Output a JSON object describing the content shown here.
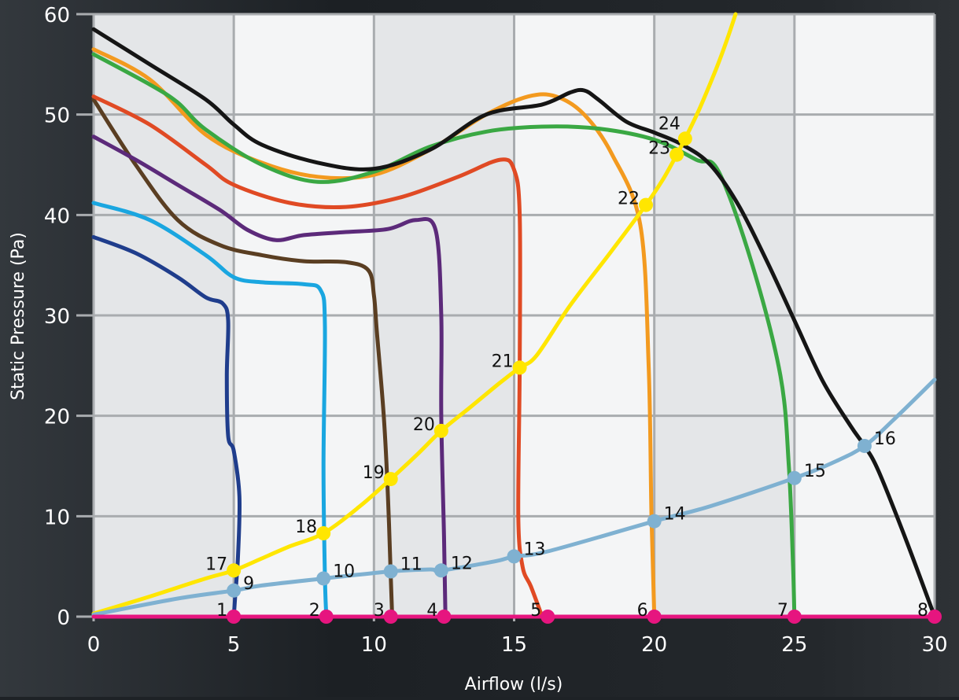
{
  "chart_data": {
    "type": "line",
    "xlabel": "Airflow (l/s)",
    "ylabel": "Static Pressure (Pa)",
    "xlim": [
      0,
      30
    ],
    "ylim": [
      0,
      60
    ],
    "xticks": [
      0,
      5,
      10,
      15,
      20,
      25,
      30
    ],
    "yticks": [
      0,
      10,
      20,
      30,
      40,
      50,
      60
    ],
    "grid": true,
    "colors": {
      "panel_light": "#f4f5f6",
      "panel_shade": "#e4e6e8",
      "grid": "#a9acaf",
      "axis_text": "#ffffff",
      "label_text": "#111111"
    },
    "series": [
      {
        "color": "#1f3d8c",
        "x": [
          0,
          1.5,
          3,
          4,
          4.6,
          4.8,
          4.75,
          4.8,
          5.0,
          5.2,
          5.15,
          5.05,
          5.0
        ],
        "y": [
          37.8,
          36.2,
          33.8,
          31.8,
          31.2,
          29.5,
          24,
          18,
          16.5,
          12,
          6,
          2,
          0
        ]
      },
      {
        "color": "#1aa6e0",
        "x": [
          0,
          2,
          4,
          5,
          6,
          7.5,
          8.1,
          8.25,
          8.2,
          8.25,
          8.3
        ],
        "y": [
          41.2,
          39.5,
          36,
          33.8,
          33.3,
          33.1,
          32.5,
          29,
          15,
          4,
          0
        ]
      },
      {
        "color": "#5a3e22",
        "x": [
          0,
          1.5,
          3,
          4.5,
          6,
          7.5,
          9,
          9.8,
          10.0,
          10.1,
          10.35,
          10.5,
          10.6,
          10.65
        ],
        "y": [
          51.5,
          45,
          39.5,
          37,
          36,
          35.4,
          35.3,
          34.5,
          32,
          28.5,
          20,
          12,
          4,
          0
        ]
      },
      {
        "color": "#5c2a7a",
        "x": [
          0,
          1.5,
          3,
          4.5,
          5.5,
          6.5,
          7.5,
          9,
          10.5,
          11.5,
          12.2,
          12.4,
          12.4,
          12.5,
          12.55
        ],
        "y": [
          47.8,
          45.5,
          43,
          40.5,
          38.5,
          37.5,
          38,
          38.3,
          38.6,
          39.5,
          38.5,
          30,
          20,
          8,
          0
        ]
      },
      {
        "color": "#e04a24",
        "x": [
          0,
          2,
          4,
          5,
          7,
          9,
          11,
          13,
          14.5,
          15.0,
          15.2,
          15.2,
          15.15,
          15.3,
          15.6,
          16.0
        ],
        "y": [
          51.8,
          49,
          45,
          43,
          41.2,
          40.8,
          41.8,
          43.8,
          45.5,
          44.5,
          40,
          25,
          10,
          5,
          3,
          0
        ]
      },
      {
        "color": "#f39a1f",
        "x": [
          0,
          2,
          4,
          6,
          8,
          10,
          12,
          14,
          15.5,
          16.5,
          17.5,
          18.5,
          19.5,
          19.8,
          19.9,
          20.0
        ],
        "y": [
          56.5,
          53.5,
          48,
          45.2,
          43.8,
          44,
          46.5,
          50,
          51.8,
          51.8,
          50,
          46,
          39,
          25,
          10,
          0
        ]
      },
      {
        "color": "#3aa843",
        "x": [
          0,
          2,
          3,
          4,
          6,
          8,
          10,
          12,
          14,
          16,
          18,
          20,
          21.5,
          22.3,
          23.5,
          24.5,
          24.8,
          24.95,
          25.0
        ],
        "y": [
          56,
          53,
          51.2,
          48.5,
          45,
          43.3,
          44.3,
          46.8,
          48.3,
          48.8,
          48.6,
          47.5,
          45.5,
          44.3,
          35,
          24,
          15,
          5,
          0
        ]
      },
      {
        "color": "#151515",
        "x": [
          0,
          2,
          4,
          5,
          6,
          8,
          10,
          12,
          14,
          16,
          17.0,
          17.5,
          18.0,
          19,
          20,
          21,
          22,
          23,
          24,
          25,
          26,
          27,
          27.5,
          28,
          29,
          30
        ],
        "y": [
          58.5,
          55,
          51.5,
          49,
          47,
          45.2,
          44.6,
          46.5,
          50,
          51,
          52.2,
          52.4,
          51.5,
          49.3,
          48.2,
          47,
          45,
          41,
          35.5,
          29.5,
          23.5,
          19,
          17,
          14.5,
          7.5,
          0
        ]
      },
      {
        "color": "#ffe600",
        "x": [
          0,
          2,
          4,
          5,
          6,
          7,
          8.2,
          9.5,
          10.6,
          11.6,
          12.4,
          13.5,
          14.5,
          15.2,
          15.8,
          17,
          18.5,
          19.7,
          20.3,
          20.8,
          21.1,
          21.6,
          22.2,
          22.6,
          22.9
        ],
        "y": [
          0.3,
          2,
          3.8,
          4.6,
          5.8,
          7,
          8.3,
          11,
          13.7,
          16.3,
          18.5,
          21,
          23.3,
          24.8,
          26,
          31,
          36.5,
          41,
          43.5,
          46,
          47.6,
          50.5,
          54.5,
          57.5,
          60
        ]
      },
      {
        "color": "#7fb1d1",
        "x": [
          0,
          3,
          5,
          6,
          8.2,
          10.6,
          12,
          12.4,
          14.3,
          15,
          16.2,
          20,
          22,
          25,
          26.5,
          27.5,
          28.5,
          30
        ],
        "y": [
          0.2,
          1.8,
          2.6,
          3.1,
          3.8,
          4.5,
          4.7,
          4.6,
          5.5,
          6.0,
          6.5,
          9.5,
          11,
          13.8,
          15.5,
          17,
          19.5,
          23.6
        ]
      },
      {
        "color": "#e6157f",
        "x": [
          0,
          30
        ],
        "y": [
          0,
          0
        ]
      }
    ],
    "points": [
      {
        "label": "1",
        "x": 5.0,
        "y": 0,
        "color": "#e6157f",
        "pos": "left"
      },
      {
        "label": "2",
        "x": 8.3,
        "y": 0,
        "color": "#e6157f",
        "pos": "left"
      },
      {
        "label": "3",
        "x": 10.6,
        "y": 0,
        "color": "#e6157f",
        "pos": "left"
      },
      {
        "label": "4",
        "x": 12.5,
        "y": 0,
        "color": "#e6157f",
        "pos": "left"
      },
      {
        "label": "5",
        "x": 16.2,
        "y": 0,
        "color": "#e6157f",
        "pos": "left"
      },
      {
        "label": "6",
        "x": 20.0,
        "y": 0,
        "color": "#e6157f",
        "pos": "left"
      },
      {
        "label": "7",
        "x": 25.0,
        "y": 0,
        "color": "#e6157f",
        "pos": "left"
      },
      {
        "label": "8",
        "x": 30.0,
        "y": 0,
        "color": "#e6157f",
        "pos": "left"
      },
      {
        "label": "9",
        "x": 5.0,
        "y": 2.6,
        "color": "#7fb1d1",
        "pos": "right"
      },
      {
        "label": "10",
        "x": 8.2,
        "y": 3.8,
        "color": "#7fb1d1",
        "pos": "right"
      },
      {
        "label": "11",
        "x": 10.6,
        "y": 4.5,
        "color": "#7fb1d1",
        "pos": "right"
      },
      {
        "label": "12",
        "x": 12.4,
        "y": 4.6,
        "color": "#7fb1d1",
        "pos": "right"
      },
      {
        "label": "13",
        "x": 15.0,
        "y": 6.0,
        "color": "#7fb1d1",
        "pos": "right"
      },
      {
        "label": "14",
        "x": 20.0,
        "y": 9.5,
        "color": "#7fb1d1",
        "pos": "right"
      },
      {
        "label": "15",
        "x": 25.0,
        "y": 13.8,
        "color": "#7fb1d1",
        "pos": "right"
      },
      {
        "label": "16",
        "x": 27.5,
        "y": 17.0,
        "color": "#7fb1d1",
        "pos": "right"
      },
      {
        "label": "17",
        "x": 5.0,
        "y": 4.6,
        "color": "#ffe600",
        "pos": "left"
      },
      {
        "label": "18",
        "x": 8.2,
        "y": 8.3,
        "color": "#ffe600",
        "pos": "left"
      },
      {
        "label": "19",
        "x": 10.6,
        "y": 13.7,
        "color": "#ffe600",
        "pos": "left"
      },
      {
        "label": "20",
        "x": 12.4,
        "y": 18.5,
        "color": "#ffe600",
        "pos": "left"
      },
      {
        "label": "21",
        "x": 15.2,
        "y": 24.8,
        "color": "#ffe600",
        "pos": "left"
      },
      {
        "label": "22",
        "x": 19.7,
        "y": 41.0,
        "color": "#ffe600",
        "pos": "left"
      },
      {
        "label": "23",
        "x": 20.8,
        "y": 46.0,
        "color": "#ffe600",
        "pos": "left"
      },
      {
        "label": "24",
        "x": 21.1,
        "y": 47.6,
        "color": "#ffe600",
        "pos": "upleft"
      }
    ]
  }
}
